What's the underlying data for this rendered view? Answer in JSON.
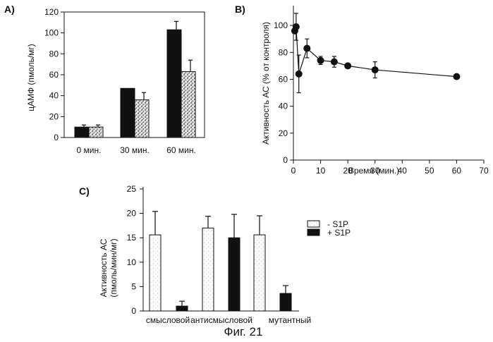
{
  "caption": "Фиг. 21",
  "colors": {
    "ink": "#111111",
    "dark_bar": "#111111",
    "light_bar": "#f4f4f4",
    "stipple": "#555555"
  },
  "chart_data": [
    {
      "panel": "A)",
      "type": "bar",
      "ylabel": "цАМФ (пмоль/мг)",
      "xlabel": "",
      "ylim": [
        0,
        120
      ],
      "yticks": [
        0,
        20,
        40,
        60,
        80,
        100,
        120
      ],
      "categories": [
        "0 мин.",
        "30 мин.",
        "60 мин."
      ],
      "series": [
        {
          "name": "dark",
          "fill": "solid",
          "values": [
            10,
            47,
            103
          ],
          "errors": [
            2,
            0,
            8
          ]
        },
        {
          "name": "stippled",
          "fill": "stipple",
          "values": [
            10,
            36,
            63
          ],
          "errors": [
            2,
            7,
            11
          ]
        }
      ],
      "legend": "none"
    },
    {
      "panel": "B)",
      "type": "line",
      "ylabel": "Активность АС (% от контроля)",
      "xlabel": "Время (мин.)",
      "xlim": [
        0,
        70
      ],
      "ylim": [
        0,
        110
      ],
      "xticks": [
        0,
        10,
        20,
        30,
        40,
        50,
        60,
        70
      ],
      "yticks": [
        0,
        20,
        40,
        60,
        80,
        100
      ],
      "x": [
        0.5,
        1,
        2,
        5,
        10,
        15,
        20,
        30,
        60
      ],
      "y": [
        96,
        99,
        64,
        83,
        74,
        73,
        70,
        67,
        62
      ],
      "errors": [
        0,
        10,
        14,
        7,
        3,
        4,
        0,
        6,
        0
      ]
    },
    {
      "panel": "C)",
      "type": "bar",
      "ylabel_line1": "Активность АС",
      "ylabel_line2": "(пмоль/мин/мг)",
      "ylim": [
        0,
        25
      ],
      "yticks": [
        0,
        5,
        10,
        15,
        20,
        25
      ],
      "bars": [
        {
          "series": "- S1P",
          "value": 15.6,
          "error": 4.8
        },
        {
          "series": "+ S1P",
          "value": 1.0,
          "error": 1.0
        },
        {
          "series": "- S1P",
          "value": 17.0,
          "error": 2.4
        },
        {
          "series": "+ S1P",
          "value": 15.0,
          "error": 4.8
        },
        {
          "series": "- S1P",
          "value": 15.6,
          "error": 3.9
        },
        {
          "series": "+ S1P",
          "value": 3.6,
          "error": 1.6
        }
      ],
      "categories": [
        "смысловой",
        "антисмысловой",
        "мутантный"
      ],
      "legend": [
        {
          "label": "- S1P",
          "fill": "light"
        },
        {
          "label": "+ S1P",
          "fill": "dark"
        }
      ]
    }
  ]
}
